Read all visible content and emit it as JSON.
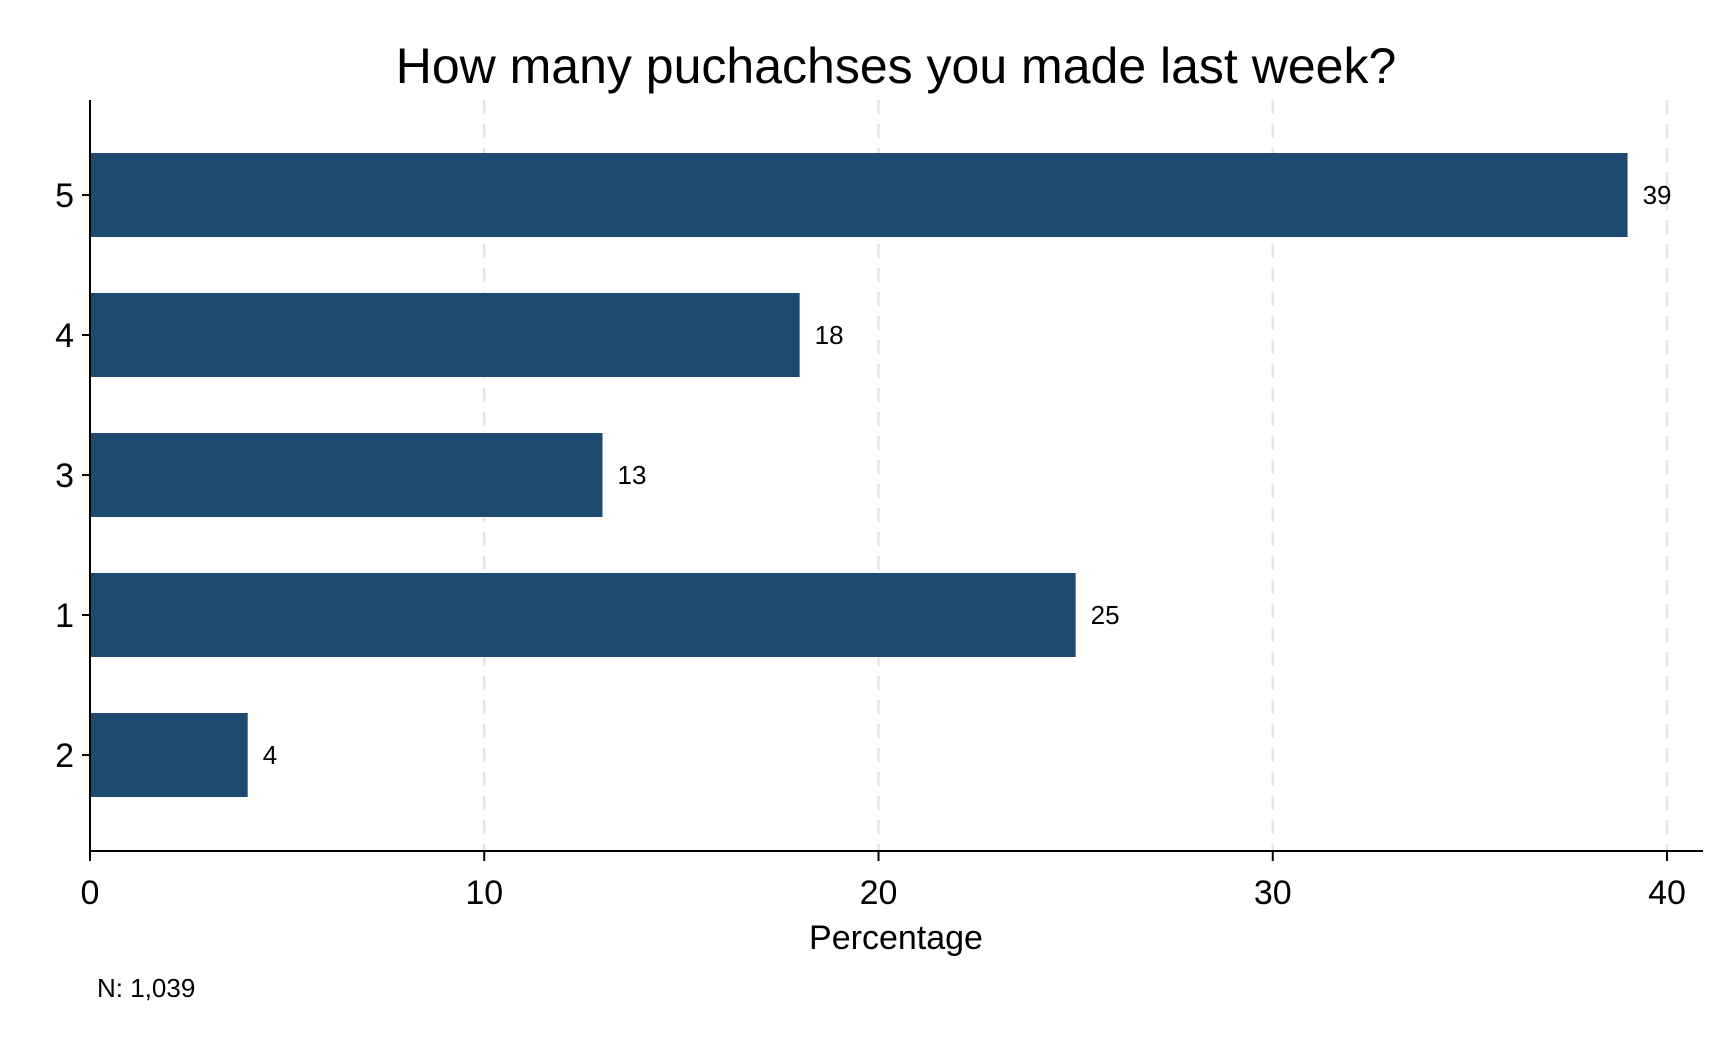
{
  "chart_data": {
    "type": "bar",
    "orientation": "horizontal",
    "title": "How many puchachses you made last week?",
    "xlabel": "Percentage",
    "ylabel": "",
    "categories": [
      "5",
      "4",
      "3",
      "1",
      "2"
    ],
    "values": [
      39,
      18,
      13,
      25,
      4
    ],
    "data_labels": [
      "39",
      "18",
      "13",
      "25",
      "4"
    ],
    "xlim": [
      0,
      40
    ],
    "xticks": [
      0,
      10,
      20,
      30,
      40
    ],
    "xtick_labels": [
      "0",
      "10",
      "20",
      "30",
      "40"
    ],
    "grid": "vertical dashed",
    "bar_color": "#1f4a70",
    "grid_color": "#e6e6e6",
    "note": "N: 1,039"
  }
}
